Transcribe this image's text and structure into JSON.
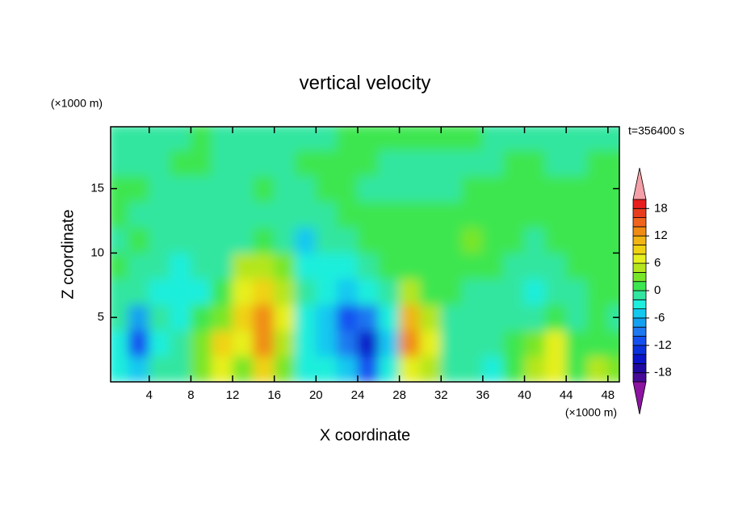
{
  "chart_data": {
    "type": "contour",
    "title": "vertical velocity",
    "x_label": "X coordinate",
    "y_label": "Z coordinate",
    "x_units": "(×1000 m)",
    "y_units": "(×1000 m)",
    "annotation": "t=356400 s",
    "x": [
      1,
      3,
      5,
      7,
      9,
      11,
      13,
      15,
      17,
      19,
      21,
      23,
      25,
      27,
      29,
      31,
      33,
      35,
      37,
      39,
      41,
      43,
      45,
      47,
      49
    ],
    "y": [
      1,
      3,
      5,
      7,
      9,
      11,
      13,
      15,
      17,
      19
    ],
    "z": [
      [
        -3,
        -6,
        -2,
        -1,
        2,
        6,
        3,
        8,
        2,
        -3,
        -4,
        -6,
        -12,
        -3,
        6,
        4,
        -1,
        -1,
        -3,
        1,
        4,
        6,
        1,
        4,
        3
      ],
      [
        -4,
        -11,
        -3,
        -1,
        3,
        9,
        6,
        12,
        5,
        -3,
        -5,
        -10,
        -15,
        -5,
        12,
        6,
        -1,
        -2,
        -2,
        0,
        3,
        7,
        1,
        1,
        0
      ],
      [
        -2,
        -8,
        -2,
        -3,
        1,
        3,
        8,
        13,
        7,
        -3,
        -5,
        -11,
        -9,
        -3,
        11,
        5,
        -1,
        -1,
        -2,
        -1,
        -1,
        1,
        -1,
        0,
        -1
      ],
      [
        -1,
        -1,
        -3,
        -4,
        -3,
        0,
        6,
        8,
        5,
        -2,
        -4,
        -6,
        -4,
        -1,
        5,
        1,
        0,
        -1,
        -1,
        -1,
        -3,
        -1,
        -1,
        0,
        1
      ],
      [
        0,
        -1,
        -2,
        -3,
        -2,
        -1,
        4,
        4,
        2,
        -3,
        -3,
        -4,
        -2,
        0,
        1,
        0,
        1,
        1,
        0,
        -1,
        -2,
        -1,
        0,
        1,
        0
      ],
      [
        -1,
        0,
        -1,
        -1,
        -1,
        -1,
        -1,
        0,
        -1,
        -5,
        -2,
        -1,
        0,
        1,
        0,
        1,
        1,
        2,
        1,
        0,
        -1,
        0,
        1,
        1,
        0
      ],
      [
        1,
        -1,
        -1,
        -1,
        -1,
        -1,
        -1,
        -1,
        -1,
        -1,
        -1,
        1,
        1,
        1,
        1,
        1,
        1,
        1,
        1,
        1,
        0,
        1,
        1,
        1,
        1
      ],
      [
        1,
        1,
        -1,
        -1,
        -1,
        -1,
        -1,
        1,
        -1,
        -1,
        1,
        1,
        -1,
        -1,
        -1,
        -1,
        -1,
        1,
        1,
        1,
        1,
        1,
        1,
        1,
        1
      ],
      [
        -1,
        -1,
        -1,
        1,
        1,
        -1,
        -1,
        -1,
        -1,
        1,
        1,
        1,
        1,
        -1,
        -1,
        -1,
        -1,
        -1,
        -1,
        1,
        1,
        -1,
        -1,
        1,
        1
      ],
      [
        -1,
        -1,
        -1,
        -1,
        1,
        -1,
        -1,
        -1,
        -1,
        -1,
        -1,
        1,
        1,
        1,
        1,
        1,
        1,
        1,
        -1,
        -1,
        -1,
        -1,
        -1,
        -1,
        -1
      ]
    ],
    "xlim": [
      0.3,
      49.1
    ],
    "ylim": [
      0,
      19.8
    ],
    "xticks": [
      4,
      8,
      12,
      16,
      20,
      24,
      28,
      32,
      36,
      40,
      44,
      48
    ],
    "yticks": [
      5,
      10,
      15
    ],
    "levels": [
      -20,
      -18,
      -16,
      -14,
      -12,
      -10,
      -8,
      -6,
      -4,
      -2,
      0,
      2,
      4,
      6,
      8,
      10,
      12,
      14,
      16,
      18,
      20
    ],
    "colors": [
      "#8c14a0",
      "#460a96",
      "#1e0aa0",
      "#0a14c8",
      "#0a32dc",
      "#1450f0",
      "#1e78f0",
      "#14a0f0",
      "#14c8f0",
      "#1eeedc",
      "#32e6a0",
      "#3ce650",
      "#78e628",
      "#b4e61e",
      "#e6f01e",
      "#f0d214",
      "#f0b414",
      "#f08c14",
      "#f0641e",
      "#e83c1e",
      "#e81e1e",
      "#f4a0a8"
    ],
    "colorbar_ticks": [
      -18,
      -12,
      -6,
      0,
      6,
      12,
      18
    ]
  }
}
